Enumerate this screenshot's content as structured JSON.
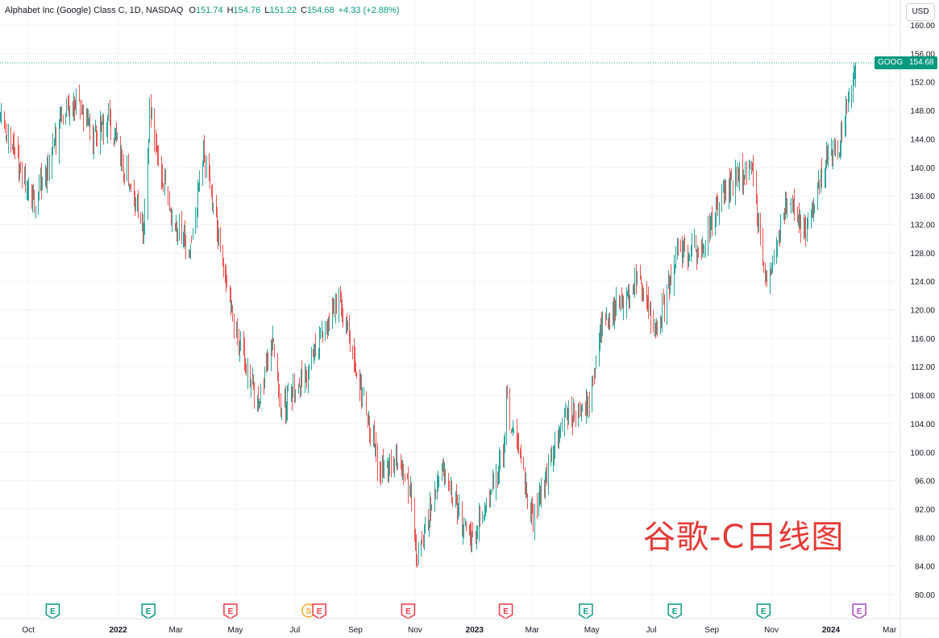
{
  "header": {
    "symbol_title": "Alphabet Inc (Google) Class C, 1D, NASDAQ",
    "open_label": "O",
    "open": "151.74",
    "high_label": "H",
    "high": "154.76",
    "low_label": "L",
    "low": "151.22",
    "close_label": "C",
    "close": "154.68",
    "change": "+4.33 (+2.88%)"
  },
  "currency_button": "USD",
  "watermark_text": "谷歌-C日线图",
  "price_tag": {
    "ticker": "GOOG",
    "price": "154.68"
  },
  "colors": {
    "up": "#26a69a",
    "down": "#ef5350",
    "tag": "#089981",
    "watermark": "#e53935"
  },
  "events": [
    {
      "x": "2021-10-26",
      "kind": "earnings",
      "label": "E",
      "color": "#089981"
    },
    {
      "x": "2022-02-01",
      "kind": "earnings",
      "label": "E",
      "color": "#089981"
    },
    {
      "x": "2022-04-26",
      "kind": "earnings",
      "label": "E",
      "color": "#f23645"
    },
    {
      "x": "2022-07-15",
      "kind": "split",
      "label": "S",
      "color": "#f5a623"
    },
    {
      "x": "2022-07-26",
      "kind": "earnings",
      "label": "E",
      "color": "#f23645"
    },
    {
      "x": "2022-10-25",
      "kind": "earnings",
      "label": "E",
      "color": "#f23645"
    },
    {
      "x": "2023-02-02",
      "kind": "earnings",
      "label": "E",
      "color": "#f23645"
    },
    {
      "x": "2023-04-25",
      "kind": "earnings",
      "label": "E",
      "color": "#089981"
    },
    {
      "x": "2023-07-25",
      "kind": "earnings",
      "label": "E",
      "color": "#089981"
    },
    {
      "x": "2023-10-24",
      "kind": "earnings",
      "label": "E",
      "color": "#089981"
    },
    {
      "x": "2024-01-30",
      "kind": "earnings",
      "label": "E",
      "color": "#ab47bc"
    }
  ],
  "chart_data": {
    "type": "candlestick",
    "title": "",
    "x_axis": {
      "ticks": [
        "Oct",
        "2022",
        "Mar",
        "May",
        "Jul",
        "Sep",
        "Nov",
        "2023",
        "Mar",
        "May",
        "Jul",
        "Sep",
        "Nov",
        "2024",
        "Mar"
      ],
      "tick_dates": [
        "2021-10-01",
        "2022-01-01",
        "2022-03-01",
        "2022-05-01",
        "2022-07-01",
        "2022-09-01",
        "2022-11-01",
        "2023-01-01",
        "2023-03-01",
        "2023-05-01",
        "2023-07-01",
        "2023-09-01",
        "2023-11-01",
        "2024-01-01",
        "2024-03-01"
      ],
      "range": [
        "2021-09-02",
        "2024-03-12"
      ]
    },
    "y_axis": {
      "ticks": [
        80,
        84,
        88,
        92,
        96,
        100,
        104,
        108,
        112,
        116,
        120,
        124,
        128,
        132,
        136,
        140,
        144,
        148,
        152,
        156,
        160
      ],
      "range": [
        78.4,
        161.6
      ],
      "position": "right"
    },
    "last_price": 154.68,
    "last_price_line": "dotted",
    "grid": true,
    "path_points": [
      {
        "x": "2021-09-02",
        "close": 146.5
      },
      {
        "x": "2021-09-20",
        "close": 141.0
      },
      {
        "x": "2021-10-04",
        "close": 135.0
      },
      {
        "x": "2021-10-20",
        "close": 139.0
      },
      {
        "x": "2021-11-03",
        "close": 147.0
      },
      {
        "x": "2021-11-19",
        "close": 149.5
      },
      {
        "x": "2021-12-06",
        "close": 144.0
      },
      {
        "x": "2021-12-22",
        "close": 147.0
      },
      {
        "x": "2022-01-10",
        "close": 139.0
      },
      {
        "x": "2022-01-27",
        "close": 131.0
      },
      {
        "x": "2022-02-02",
        "close": 148.0
      },
      {
        "x": "2022-02-24",
        "close": 133.0
      },
      {
        "x": "2022-03-15",
        "close": 128.0
      },
      {
        "x": "2022-03-29",
        "close": 142.0
      },
      {
        "x": "2022-04-28",
        "close": 119.0
      },
      {
        "x": "2022-05-24",
        "close": 106.0
      },
      {
        "x": "2022-06-08",
        "close": 117.0
      },
      {
        "x": "2022-06-16",
        "close": 106.0
      },
      {
        "x": "2022-07-15",
        "close": 112.0
      },
      {
        "x": "2022-08-15",
        "close": 122.0
      },
      {
        "x": "2022-09-26",
        "close": 97.0
      },
      {
        "x": "2022-10-11",
        "close": 99.0
      },
      {
        "x": "2022-10-26",
        "close": 95.0
      },
      {
        "x": "2022-11-03",
        "close": 85.0
      },
      {
        "x": "2022-11-28",
        "close": 98.0
      },
      {
        "x": "2022-12-28",
        "close": 87.0
      },
      {
        "x": "2023-01-31",
        "close": 100.0
      },
      {
        "x": "2023-02-02",
        "close": 107.0
      },
      {
        "x": "2023-03-01",
        "close": 90.5
      },
      {
        "x": "2023-03-31",
        "close": 104.0
      },
      {
        "x": "2023-04-27",
        "close": 107.0
      },
      {
        "x": "2023-05-10",
        "close": 117.0
      },
      {
        "x": "2023-06-16",
        "close": 124.5
      },
      {
        "x": "2023-07-07",
        "close": 117.0
      },
      {
        "x": "2023-07-26",
        "close": 128.0
      },
      {
        "x": "2023-08-18",
        "close": 128.5
      },
      {
        "x": "2023-09-14",
        "close": 137.0
      },
      {
        "x": "2023-10-12",
        "close": 140.0
      },
      {
        "x": "2023-10-26",
        "close": 123.0
      },
      {
        "x": "2023-11-17",
        "close": 136.0
      },
      {
        "x": "2023-12-06",
        "close": 131.0
      },
      {
        "x": "2023-12-27",
        "close": 141.0
      },
      {
        "x": "2024-01-12",
        "close": 144.0
      },
      {
        "x": "2024-01-26",
        "close": 154.68
      }
    ]
  }
}
